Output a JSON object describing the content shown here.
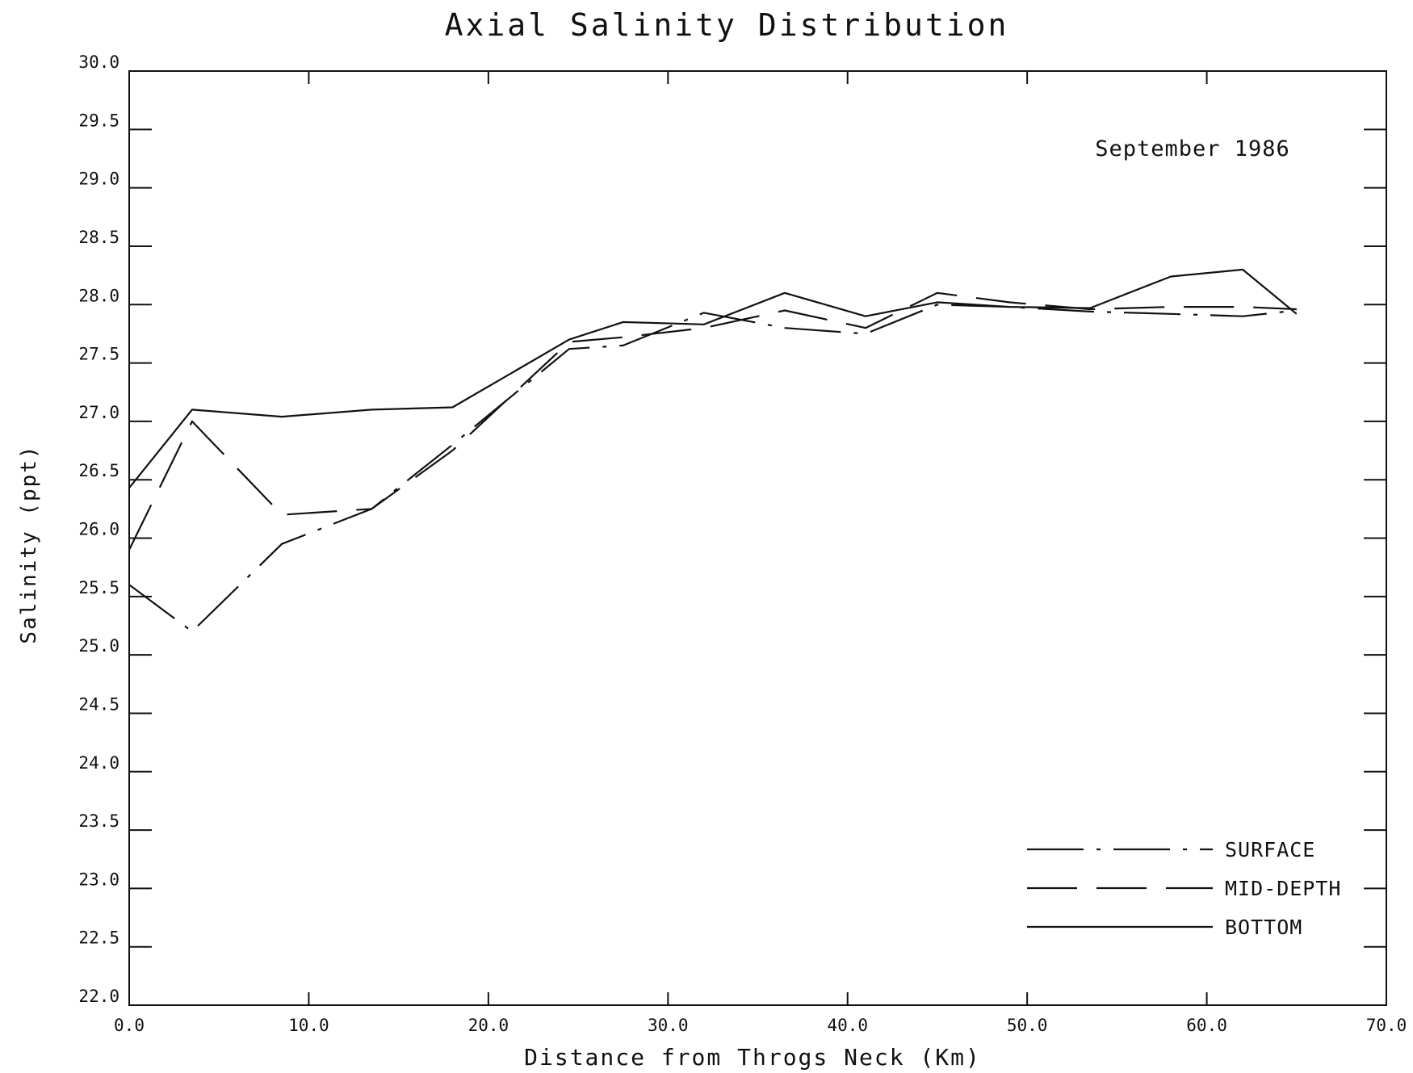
{
  "chart_data": {
    "type": "line",
    "title": "Axial Salinity Distribution",
    "subtitle": "September 1986",
    "xlabel": "Distance from Throgs Neck (Km)",
    "ylabel": "Salinity (ppt)",
    "xlim": [
      0,
      70
    ],
    "ylim": [
      22,
      30
    ],
    "xticks": [
      0,
      10,
      20,
      30,
      40,
      50,
      60,
      70
    ],
    "xtick_labels": [
      "0.0",
      "10.0",
      "20.0",
      "30.0",
      "40.0",
      "50.0",
      "60.0",
      "70.0"
    ],
    "yticks": [
      22,
      22.5,
      23,
      23.5,
      24,
      24.5,
      25,
      25.5,
      26,
      26.5,
      27,
      27.5,
      28,
      28.5,
      29,
      29.5,
      30
    ],
    "ytick_labels": [
      "22.0",
      "22.5",
      "23.0",
      "23.5",
      "24.0",
      "24.5",
      "25.0",
      "25.5",
      "26.0",
      "26.5",
      "27.0",
      "27.5",
      "28.0",
      "28.5",
      "29.0",
      "29.5",
      "30.0"
    ],
    "grid": false,
    "legend_position": "bottom-right",
    "series": [
      {
        "name": "SURFACE",
        "style": "dash-dot",
        "color": "#111111",
        "x": [
          0.0,
          3.5,
          8.5,
          13.5,
          18.0,
          24.5,
          27.5,
          32.0,
          36.5,
          41.0,
          45.0,
          49.0,
          53.5,
          58.0,
          62.0,
          65.0
        ],
        "y": [
          25.6,
          25.2,
          25.95,
          26.25,
          26.8,
          27.62,
          27.65,
          27.93,
          27.8,
          27.75,
          28.0,
          27.98,
          27.94,
          27.92,
          27.9,
          27.95
        ]
      },
      {
        "name": "MID-DEPTH",
        "style": "dashed",
        "color": "#111111",
        "x": [
          0.0,
          3.5,
          8.5,
          13.5,
          18.0,
          24.5,
          27.5,
          32.0,
          36.5,
          41.0,
          45.0,
          49.0,
          53.5,
          58.0,
          62.0,
          65.0
        ],
        "y": [
          25.9,
          27.0,
          26.2,
          26.25,
          26.75,
          27.68,
          27.72,
          27.8,
          27.95,
          27.8,
          28.1,
          28.02,
          27.96,
          27.98,
          27.98,
          27.96
        ]
      },
      {
        "name": "BOTTOM",
        "style": "solid",
        "color": "#111111",
        "x": [
          0.0,
          3.5,
          8.5,
          13.5,
          18.0,
          24.5,
          27.5,
          32.0,
          36.5,
          41.0,
          45.0,
          49.0,
          53.5,
          58.0,
          62.0,
          65.0
        ],
        "y": [
          26.43,
          27.1,
          27.04,
          27.1,
          27.12,
          27.7,
          27.85,
          27.83,
          28.1,
          27.9,
          28.02,
          27.98,
          27.97,
          28.24,
          28.3,
          27.92
        ]
      }
    ]
  }
}
